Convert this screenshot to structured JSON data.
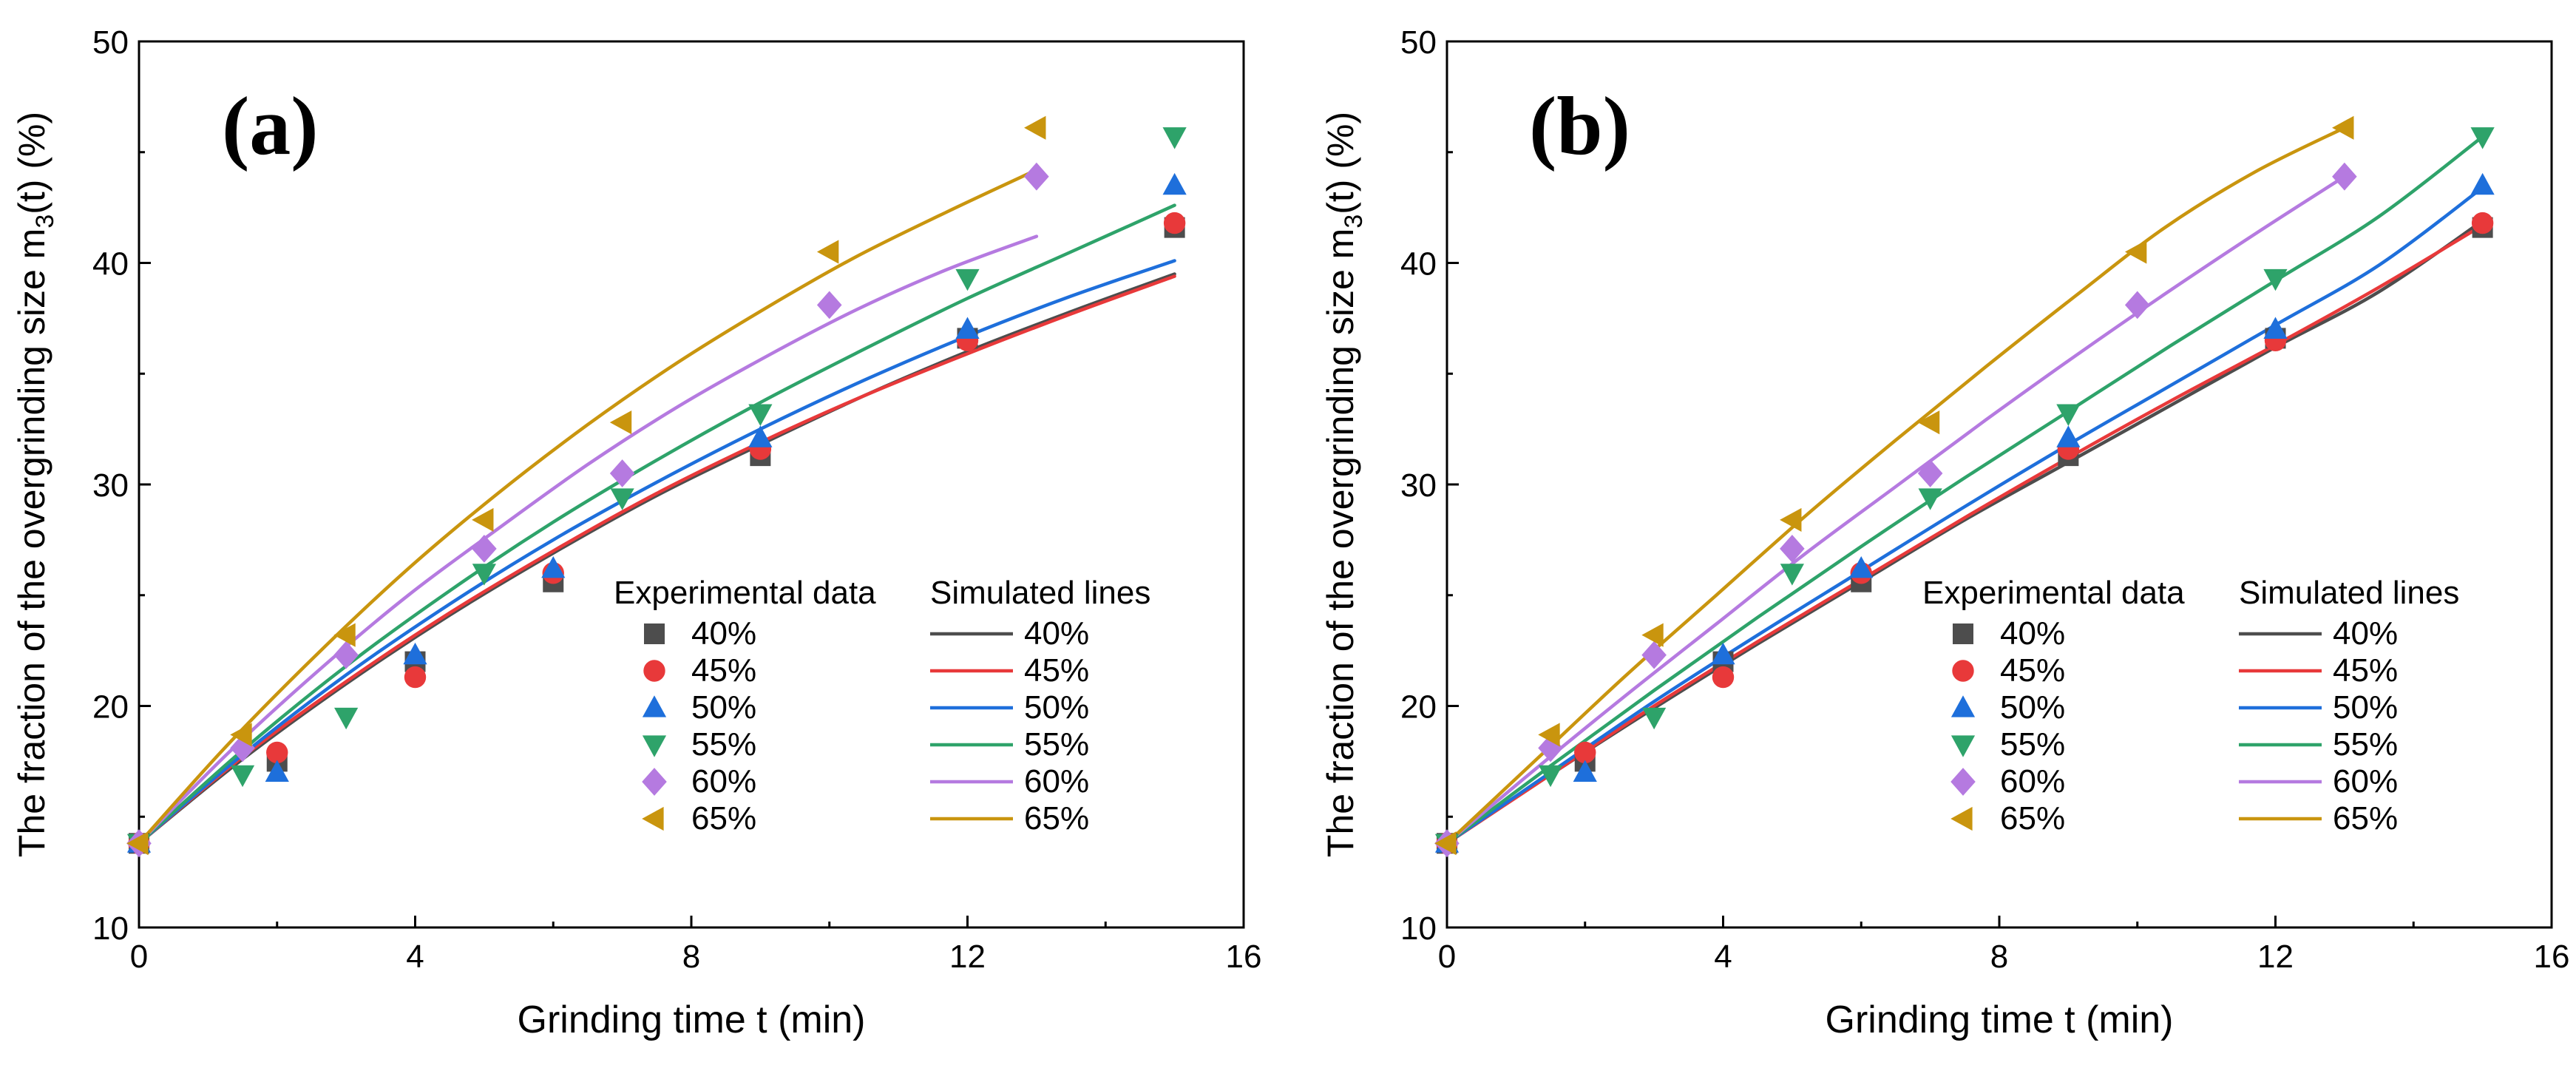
{
  "chart_data": [
    {
      "type": "scatter",
      "panel_label": "(a)",
      "xlabel": "Grinding time t (min)",
      "ylabel_main": "The fraction of the overgrinding size m",
      "ylabel_sub": "3",
      "ylabel_tail": "(t) (%)",
      "xlim": [
        0,
        16
      ],
      "ylim": [
        10,
        50
      ],
      "xticks": [
        0,
        4,
        8,
        12,
        16
      ],
      "yticks": [
        10,
        20,
        30,
        40,
        50
      ],
      "legend": {
        "placement": "lower-right",
        "exp_header": "Experimental data",
        "sim_header": "Simulated lines"
      },
      "series": [
        {
          "name": "40%",
          "color": "#4d4d4d",
          "marker": "square",
          "x": [
            0,
            2,
            4,
            6,
            9,
            12,
            15
          ],
          "y": [
            13.8,
            17.5,
            22.0,
            25.6,
            31.3,
            36.6,
            41.6
          ],
          "line_x": [
            0,
            1.5,
            3,
            4.5,
            6,
            7.5,
            9,
            10.5,
            12,
            13.5,
            15
          ],
          "line_y": [
            13.8,
            17.6,
            21.0,
            24.1,
            26.9,
            29.5,
            31.8,
            34.0,
            36.0,
            37.8,
            39.5
          ]
        },
        {
          "name": "45%",
          "color": "#e8393a",
          "marker": "circle",
          "x": [
            0,
            2,
            4,
            6,
            9,
            12,
            15
          ],
          "y": [
            13.8,
            17.9,
            21.3,
            26.0,
            31.6,
            36.5,
            41.8
          ],
          "line_x": [
            0,
            1.5,
            3,
            4.5,
            6,
            7.5,
            9,
            10.5,
            12,
            13.5,
            15
          ],
          "line_y": [
            13.8,
            17.7,
            21.1,
            24.2,
            27.0,
            29.6,
            31.9,
            34.0,
            35.9,
            37.7,
            39.4
          ]
        },
        {
          "name": "50%",
          "color": "#1e6fdb",
          "marker": "triangle-up",
          "x": [
            0,
            2,
            4,
            6,
            9,
            12,
            15
          ],
          "y": [
            13.8,
            17.0,
            22.3,
            26.2,
            32.1,
            37.0,
            43.5
          ],
          "line_x": [
            0,
            1.5,
            3,
            4.5,
            6,
            7.5,
            9,
            10.5,
            12,
            13.5,
            15
          ],
          "line_y": [
            13.8,
            17.8,
            21.4,
            24.6,
            27.5,
            30.1,
            32.5,
            34.7,
            36.7,
            38.5,
            40.1
          ]
        },
        {
          "name": "55%",
          "color": "#2ea36a",
          "marker": "triangle-down",
          "x": [
            0,
            1.5,
            3,
            5,
            7,
            9,
            12,
            15
          ],
          "y": [
            13.8,
            16.9,
            19.5,
            26.0,
            29.4,
            33.2,
            39.3,
            45.7
          ],
          "line_x": [
            0,
            1.5,
            3,
            4.5,
            6,
            7.5,
            9,
            10.5,
            12,
            13.5,
            15
          ],
          "line_y": [
            13.8,
            18.0,
            21.8,
            25.2,
            28.3,
            31.1,
            33.7,
            36.1,
            38.4,
            40.5,
            42.6
          ]
        },
        {
          "name": "60%",
          "color": "#b57ae0",
          "marker": "diamond",
          "x": [
            0,
            1.5,
            3,
            5,
            7,
            10,
            13
          ],
          "y": [
            13.8,
            18.1,
            22.3,
            27.1,
            30.5,
            38.1,
            43.9
          ],
          "line_x": [
            0,
            1.3,
            2.6,
            3.9,
            5.2,
            6.5,
            7.8,
            9.1,
            10.4,
            11.7,
            13
          ],
          "line_y": [
            13.8,
            17.9,
            21.6,
            25.0,
            28.0,
            30.9,
            33.5,
            35.8,
            37.9,
            39.7,
            41.2
          ]
        },
        {
          "name": "65%",
          "color": "#c9950e",
          "marker": "triangle-left",
          "x": [
            0,
            1.5,
            3,
            5,
            7,
            10,
            13
          ],
          "y": [
            13.8,
            18.7,
            23.2,
            28.4,
            32.8,
            40.5,
            46.1
          ],
          "line_x": [
            0,
            1.3,
            2.6,
            3.9,
            5.2,
            6.5,
            7.8,
            9.1,
            10.4,
            11.7,
            13
          ],
          "line_y": [
            13.8,
            18.3,
            22.4,
            26.2,
            29.6,
            32.7,
            35.5,
            38.0,
            40.3,
            42.3,
            44.2
          ]
        }
      ]
    },
    {
      "type": "scatter",
      "panel_label": "(b)",
      "xlabel": "Grinding time t (min)",
      "ylabel_main": "The fraction of the overgrinding size m",
      "ylabel_sub": "3",
      "ylabel_tail": "(t) (%)",
      "xlim": [
        0,
        16
      ],
      "ylim": [
        10,
        50
      ],
      "xticks": [
        0,
        4,
        8,
        12,
        16
      ],
      "yticks": [
        10,
        20,
        30,
        40,
        50
      ],
      "legend": {
        "placement": "lower-right",
        "exp_header": "Experimental data",
        "sim_header": "Simulated lines"
      },
      "series": [
        {
          "name": "40%",
          "color": "#4d4d4d",
          "marker": "square",
          "x": [
            0,
            2,
            4,
            6,
            9,
            12,
            15
          ],
          "y": [
            13.8,
            17.5,
            22.0,
            25.6,
            31.3,
            36.6,
            41.6
          ],
          "line_x": [
            0,
            1.5,
            3,
            4.5,
            6,
            7.5,
            9,
            10.5,
            12,
            13.5,
            15
          ],
          "line_y": [
            13.8,
            16.9,
            19.9,
            22.8,
            25.6,
            28.4,
            31.0,
            33.6,
            36.2,
            38.7,
            41.9
          ]
        },
        {
          "name": "45%",
          "color": "#e8393a",
          "marker": "circle",
          "x": [
            0,
            2,
            4,
            6,
            9,
            12,
            15
          ],
          "y": [
            13.8,
            17.9,
            21.3,
            26.0,
            31.6,
            36.5,
            41.8
          ],
          "line_x": [
            0,
            1.5,
            3,
            4.5,
            6,
            7.5,
            9,
            10.5,
            12,
            13.5,
            15
          ],
          "line_y": [
            13.8,
            16.9,
            20.0,
            22.9,
            25.7,
            28.5,
            31.2,
            33.8,
            36.3,
            38.9,
            41.7
          ]
        },
        {
          "name": "50%",
          "color": "#1e6fdb",
          "marker": "triangle-up",
          "x": [
            0,
            2,
            4,
            6,
            9,
            12,
            15
          ],
          "y": [
            13.8,
            17.0,
            22.3,
            26.2,
            32.1,
            37.0,
            43.5
          ],
          "line_x": [
            0,
            1.5,
            3,
            4.5,
            6,
            7.5,
            9,
            10.5,
            12,
            13.5,
            15
          ],
          "line_y": [
            13.8,
            17.0,
            20.2,
            23.2,
            26.1,
            29.0,
            31.8,
            34.5,
            37.2,
            39.9,
            43.4
          ]
        },
        {
          "name": "55%",
          "color": "#2ea36a",
          "marker": "triangle-down",
          "x": [
            0,
            1.5,
            3,
            5,
            7,
            9,
            12,
            15
          ],
          "y": [
            13.8,
            16.9,
            19.5,
            26.0,
            29.4,
            33.2,
            39.3,
            45.7
          ],
          "line_x": [
            0,
            1.5,
            3,
            4.5,
            6,
            7.5,
            9,
            10.5,
            12,
            13.5,
            15
          ],
          "line_y": [
            13.8,
            17.3,
            20.7,
            24.0,
            27.2,
            30.3,
            33.3,
            36.3,
            39.2,
            42.1,
            45.7
          ]
        },
        {
          "name": "60%",
          "color": "#b57ae0",
          "marker": "diamond",
          "x": [
            0,
            1.5,
            3,
            5,
            7,
            10,
            13
          ],
          "y": [
            13.8,
            18.1,
            22.3,
            27.1,
            30.5,
            38.1,
            43.9
          ],
          "line_x": [
            0,
            1.3,
            2.6,
            3.9,
            5.2,
            6.5,
            7.8,
            9.1,
            10.4,
            11.7,
            13
          ],
          "line_y": [
            13.8,
            17.2,
            20.5,
            23.7,
            26.9,
            29.9,
            32.9,
            35.8,
            38.6,
            41.3,
            43.9
          ]
        },
        {
          "name": "65%",
          "color": "#c9950e",
          "marker": "triangle-left",
          "x": [
            0,
            1.5,
            3,
            5,
            7,
            10,
            13
          ],
          "y": [
            13.8,
            18.7,
            23.2,
            28.4,
            32.8,
            40.5,
            46.1
          ],
          "line_x": [
            0,
            1.3,
            2.6,
            3.9,
            5.2,
            6.5,
            7.8,
            9.1,
            10.4,
            11.7,
            13
          ],
          "line_y": [
            13.8,
            17.6,
            21.4,
            25.0,
            28.6,
            32.0,
            35.3,
            38.5,
            41.6,
            44.1,
            46.1
          ]
        }
      ]
    }
  ]
}
